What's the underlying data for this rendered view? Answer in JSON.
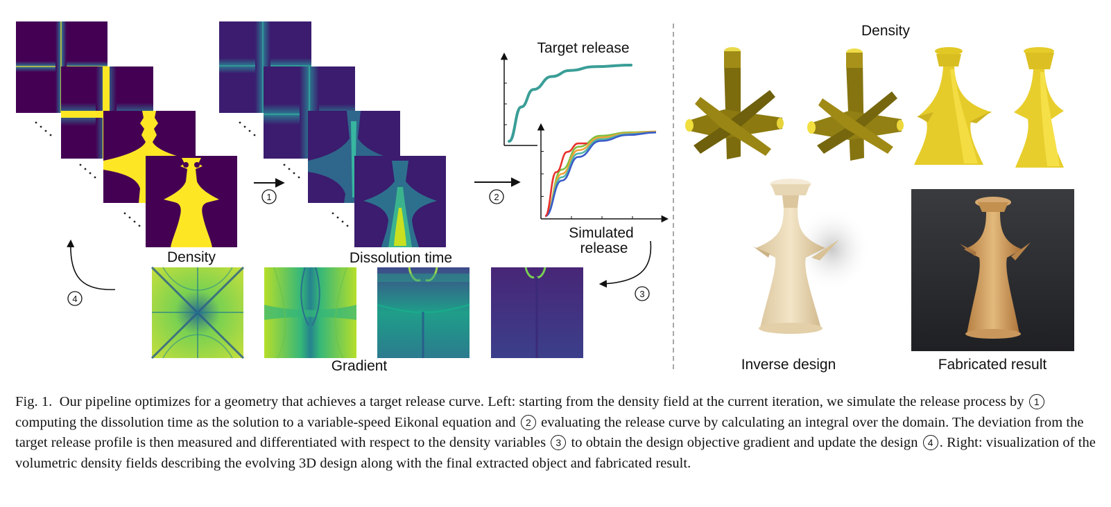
{
  "labels": {
    "density_left": "Density",
    "dissolution_time": "Dissolution time",
    "gradient": "Gradient",
    "target_release": "Target release",
    "simulated_release_1": "Simulated",
    "simulated_release_2": "release",
    "density_right": "Density",
    "inverse_design": "Inverse design",
    "fabricated_result": "Fabricated result"
  },
  "steps": [
    "1",
    "2",
    "3",
    "4"
  ],
  "caption": {
    "fig_label": "Fig. 1.",
    "p1": "Our pipeline optimizes for a geometry that achieves a target release curve. Left: starting from the density field at the current iteration, we simulate the release process by",
    "p2": "computing the dissolution time as the solution to a variable-speed Eikonal equation and",
    "p3": "evaluating the release curve by calculating an integral over the domain. The deviation from the target release profile is then measured and differentiated with respect to the density variables",
    "p4": "to obtain the design objective gradient and update the design",
    "p5": ". Right: visualization of the volumetric density fields describing the evolving 3D design along with the final extracted object and fabricated result."
  },
  "colors": {
    "viridis_dark": "#440154",
    "viridis_yellow": "#fde725",
    "target_curve": "#3a9e97",
    "sim_red": "#e8322b",
    "sim_green": "#7fbf3f",
    "sim_orange": "#f0a43a",
    "sim_blue": "#3a5cc8",
    "sim_teal": "#52b6a6",
    "olive": "#8c7a10",
    "gold": "#e8cc2a",
    "beige": "#e9d8b6"
  },
  "chart_data": {
    "type": "line",
    "title": "Target release",
    "xlabel": "Simulated release",
    "target": {
      "x": [
        0,
        0.1,
        0.2,
        0.35,
        0.5,
        0.7,
        1.0
      ],
      "y": [
        0,
        0.45,
        0.68,
        0.85,
        0.93,
        0.98,
        1.0
      ]
    },
    "simulated": [
      {
        "x": [
          0,
          0.15,
          0.3,
          0.5,
          0.75,
          1.0
        ],
        "y": [
          0,
          0.55,
          0.82,
          0.95,
          0.99,
          1.0
        ]
      },
      {
        "x": [
          0,
          0.15,
          0.3,
          0.5,
          0.75,
          1.0
        ],
        "y": [
          0,
          0.5,
          0.78,
          0.93,
          0.98,
          1.0
        ]
      },
      {
        "x": [
          0,
          0.15,
          0.3,
          0.5,
          0.75,
          1.0
        ],
        "y": [
          0,
          0.46,
          0.74,
          0.91,
          0.97,
          0.99
        ]
      },
      {
        "x": [
          0,
          0.15,
          0.3,
          0.5,
          0.75,
          1.0
        ],
        "y": [
          0,
          0.42,
          0.7,
          0.89,
          0.96,
          0.99
        ]
      },
      {
        "x": [
          0,
          0.1,
          0.2,
          0.3,
          0.38
        ],
        "y": [
          0,
          0.52,
          0.76,
          0.86,
          0.86
        ]
      }
    ]
  }
}
